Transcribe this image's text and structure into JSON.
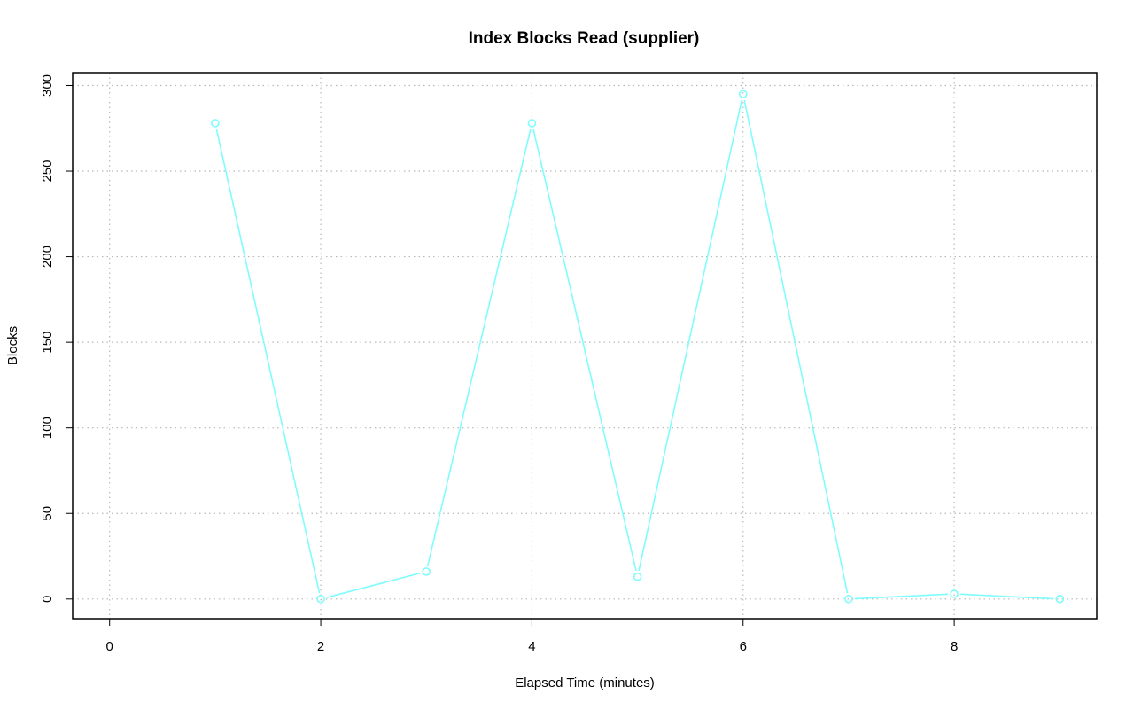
{
  "chart_data": {
    "type": "line",
    "title": "Index Blocks Read (supplier)",
    "xlabel": "Elapsed Time (minutes)",
    "ylabel": "Blocks",
    "xlim": [
      -0.35,
      9.35
    ],
    "ylim": [
      -11.5,
      307.5
    ],
    "x_ticks": [
      0,
      2,
      4,
      6,
      8
    ],
    "y_ticks": [
      0,
      50,
      100,
      150,
      200,
      250,
      300
    ],
    "grid": true,
    "line_color": "#7ffdfd",
    "series": [
      {
        "x": [
          1,
          2,
          3,
          4,
          5,
          6,
          7,
          8,
          9
        ],
        "values": [
          278,
          0,
          16,
          278,
          13,
          295,
          0,
          3,
          0
        ]
      }
    ]
  }
}
